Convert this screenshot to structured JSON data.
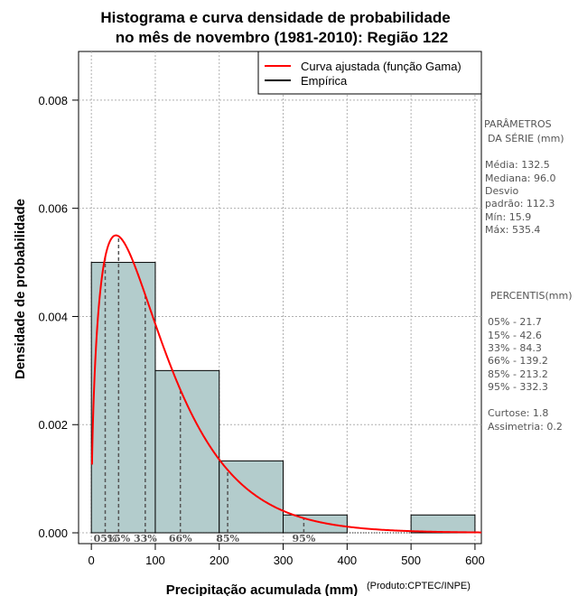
{
  "chart_data": {
    "type": "histogram",
    "title_line1": "Histograma e curva densidade de probabilidade",
    "title_line2": "no mês de novembro (1981-2010): Região 122",
    "xlabel": "Precipitação acumulada (mm)",
    "ylabel": "Densidade de probabilidade",
    "credit": "(Produto:CPTEC/INPE)",
    "xlim": [
      -20,
      610
    ],
    "ylim": [
      -0.0002,
      0.0089
    ],
    "x_ticks": [
      0,
      100,
      200,
      300,
      400,
      500,
      600
    ],
    "x_tick_labels": [
      "0",
      "100",
      "200",
      "300",
      "400",
      "500",
      "600"
    ],
    "y_ticks": [
      0,
      0.002,
      0.004,
      0.006,
      0.008
    ],
    "y_tick_labels": [
      "0.000",
      "0.002",
      "0.004",
      "0.006",
      "0.008"
    ],
    "grid": true,
    "bins": [
      {
        "from": 0,
        "to": 100,
        "density": 0.005
      },
      {
        "from": 100,
        "to": 200,
        "density": 0.003
      },
      {
        "from": 200,
        "to": 300,
        "density": 0.00133
      },
      {
        "from": 300,
        "to": 400,
        "density": 0.00033
      },
      {
        "from": 400,
        "to": 500,
        "density": 0
      },
      {
        "from": 500,
        "to": 600,
        "density": 0.00033
      }
    ],
    "curve": {
      "name": "Curva ajustada (função Gama)",
      "color": "#ff0000",
      "x_start": 1,
      "x_end": 610,
      "gamma_shape": 1.55,
      "gamma_scale": 70,
      "peak": {
        "x": 37,
        "y": 0.0055
      }
    },
    "legend": {
      "position": "top-right",
      "entries": [
        {
          "label": "Curva ajustada (função Gama)",
          "color": "#ff0000"
        },
        {
          "label": "Empírica",
          "color": "#000000"
        }
      ]
    },
    "percentile_lines": [
      {
        "label": "05%",
        "x": 21.7
      },
      {
        "label": "15%",
        "x": 42.6
      },
      {
        "label": "33%",
        "x": 84.3
      },
      {
        "label": "66%",
        "x": 139.2
      },
      {
        "label": "85%",
        "x": 213.2
      },
      {
        "label": "95%",
        "x": 332.3
      }
    ],
    "bar_color": "#b3cccc",
    "curve_color": "#ff0000"
  },
  "sidebar": {
    "params_header_1": "PARÂMETROS",
    "params_header_2": "DA SÉRIE (mm)",
    "media": "Média:  132.5",
    "mediana": "Mediana:  96.0",
    "desvio_1": "Desvio",
    "desvio_2": "padrão:  112.3",
    "min": "Mín:  15.9",
    "max": "Máx:  535.4",
    "percentis_header": "PERCENTIS(mm)",
    "p05": "05% -   21.7",
    "p15": "15% -   42.6",
    "p33": "33% -   84.3",
    "p66": "66% -   139.2",
    "p85": "85% -   213.2",
    "p95": "95% -   332.3",
    "curtose": "Curtose:  1.8",
    "assimetria": "Assimetria:  0.2"
  }
}
